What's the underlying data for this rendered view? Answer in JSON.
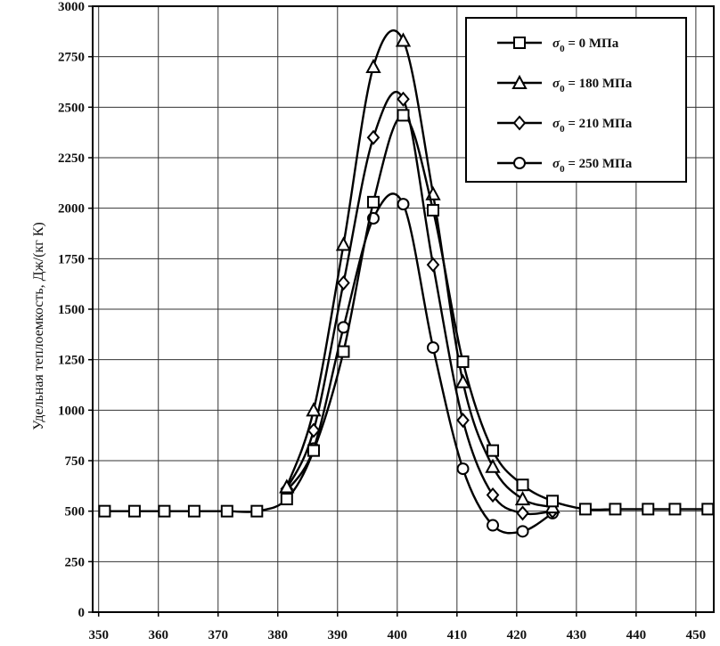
{
  "chart_data": {
    "type": "line",
    "title": "",
    "xlabel": "",
    "ylabel": "Удельная теплоемкость, Дж/(кг  К)",
    "xlim": [
      349,
      453
    ],
    "ylim": [
      0,
      3000
    ],
    "xticks": [
      350,
      360,
      370,
      380,
      390,
      400,
      410,
      420,
      430,
      440,
      450
    ],
    "yticks": [
      0,
      250,
      500,
      750,
      1000,
      1250,
      1500,
      1750,
      2000,
      2250,
      2500,
      2750,
      3000
    ],
    "grid": true,
    "legend_position": "top-right",
    "series": [
      {
        "name": "σ0 = 0 МПа",
        "sym": "σ",
        "sub": "0",
        "rest": " = 0 МПа",
        "marker": "square",
        "x": [
          351,
          356,
          361,
          366,
          371.5,
          376.5,
          381.5,
          386,
          391,
          396,
          401,
          406,
          411,
          416,
          421,
          426,
          431.5,
          436.5,
          442,
          446.5,
          452
        ],
        "y": [
          500,
          500,
          500,
          500,
          500,
          500,
          560,
          800,
          1290,
          2030,
          2460,
          1990,
          1240,
          800,
          630,
          550,
          510,
          510,
          510,
          510,
          510
        ]
      },
      {
        "name": "σ0 = 180 МПа",
        "sym": "σ",
        "sub": "0",
        "rest": " = 180 МПа",
        "marker": "triangle",
        "x": [
          381.5,
          386,
          391,
          396,
          401,
          406,
          411,
          416,
          421,
          426
        ],
        "y": [
          620,
          1000,
          1820,
          2700,
          2830,
          2070,
          1140,
          720,
          560,
          520
        ]
      },
      {
        "name": "σ0 = 210 МПа",
        "sym": "σ",
        "sub": "0",
        "rest": " = 210 МПа",
        "marker": "diamond",
        "x": [
          381.5,
          386,
          391,
          396,
          401,
          406,
          411,
          416,
          421,
          426
        ],
        "y": [
          610,
          900,
          1630,
          2350,
          2540,
          1720,
          950,
          580,
          490,
          500
        ]
      },
      {
        "name": "σ0 = 250 МПа",
        "sym": "σ",
        "sub": "0",
        "rest": " = 250 МПа",
        "marker": "circle",
        "x": [
          381.5,
          386,
          391,
          396,
          401,
          406,
          411,
          416,
          421,
          426
        ],
        "y": [
          600,
          810,
          1410,
          1950,
          2020,
          1310,
          710,
          430,
          400,
          490
        ]
      }
    ]
  }
}
